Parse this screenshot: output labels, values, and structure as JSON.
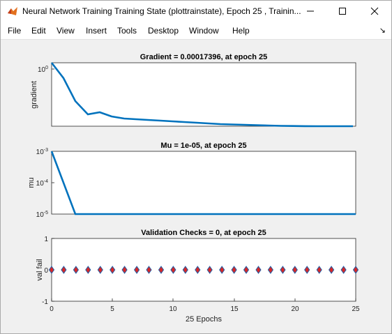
{
  "window": {
    "title": "Neural Network Training Training State (plottrainstate), Epoch 25 , Trainin..."
  },
  "menu": [
    "File",
    "Edit",
    "View",
    "Insert",
    "Tools",
    "Desktop",
    "Window",
    "Help"
  ],
  "chart_data": [
    {
      "type": "line",
      "title": "Gradient = 0.00017396, at epoch 25",
      "ylabel": "gradient",
      "yscale": "log",
      "y_tick_labels": [
        "10^0"
      ],
      "x": [
        0,
        1,
        2,
        3,
        4,
        5,
        6,
        7,
        8,
        9,
        10,
        11,
        12,
        13,
        14,
        15,
        16,
        17,
        18,
        19,
        20,
        21,
        22,
        23,
        24,
        25
      ],
      "values": [
        1.2,
        0.55,
        0.12,
        0.045,
        0.052,
        0.038,
        0.033,
        0.031,
        0.028,
        0.024,
        0.02,
        0.017,
        0.014,
        0.011,
        0.0085,
        0.0065,
        0.005,
        0.0038,
        0.003,
        0.0023,
        0.0019,
        0.0016,
        0.0014,
        0.0013,
        0.0012,
        0.00017396
      ],
      "color": "#0072bd"
    },
    {
      "type": "line",
      "title": "Mu = 1e-05, at epoch 25",
      "ylabel": "mu",
      "yscale": "log",
      "ylim": [
        1e-05,
        0.001
      ],
      "y_tick_labels": [
        "10^-3",
        "10^-4",
        "10^-5"
      ],
      "x": [
        0,
        1,
        2,
        3,
        4,
        5,
        6,
        7,
        8,
        9,
        10,
        11,
        12,
        13,
        14,
        15,
        16,
        17,
        18,
        19,
        20,
        21,
        22,
        23,
        24,
        25
      ],
      "values": [
        0.001,
        0.0001,
        1e-05,
        1e-05,
        1e-05,
        1e-05,
        1e-05,
        1e-05,
        1e-05,
        1e-05,
        1e-05,
        1e-05,
        1e-05,
        1e-05,
        1e-05,
        1e-05,
        1e-05,
        1e-05,
        1e-05,
        1e-05,
        1e-05,
        1e-05,
        1e-05,
        1e-05,
        1e-05,
        1e-05
      ],
      "color": "#0072bd"
    },
    {
      "type": "scatter",
      "title": "Validation Checks = 0, at epoch 25",
      "ylabel": "val fail",
      "xlabel": "25 Epochs",
      "ylim": [
        -1,
        1
      ],
      "y_ticks": [
        1,
        0,
        -1
      ],
      "x_ticks": [
        0,
        5,
        10,
        15,
        20,
        25
      ],
      "x": [
        0,
        1,
        2,
        3,
        4,
        5,
        6,
        7,
        8,
        9,
        10,
        11,
        12,
        13,
        14,
        15,
        16,
        17,
        18,
        19,
        20,
        21,
        22,
        23,
        24,
        25
      ],
      "values": [
        0,
        0,
        0,
        0,
        0,
        0,
        0,
        0,
        0,
        0,
        0,
        0,
        0,
        0,
        0,
        0,
        0,
        0,
        0,
        0,
        0,
        0,
        0,
        0,
        0,
        0
      ],
      "marker_fill": "#d62728",
      "marker_edge": "#1f5fa8"
    }
  ]
}
